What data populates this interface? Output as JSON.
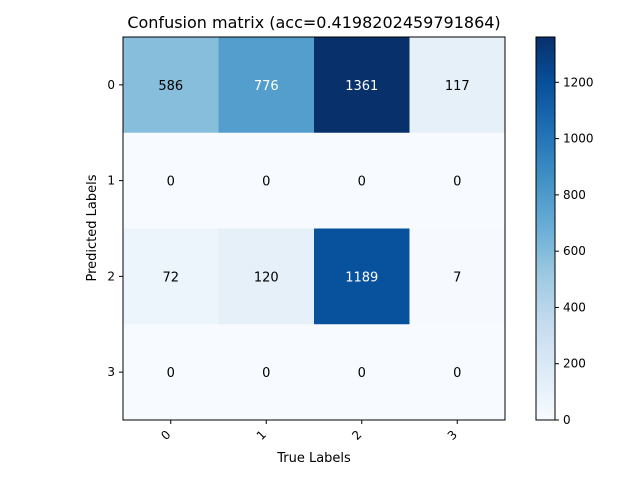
{
  "chart_data": {
    "type": "heatmap",
    "title": "Confusion matrix (acc=0.4198202459791864)",
    "xlabel": "True Labels",
    "ylabel": "Predicted Labels",
    "x_tick_labels": [
      "0",
      "1",
      "2",
      "3"
    ],
    "y_tick_labels": [
      "0",
      "1",
      "2",
      "3"
    ],
    "matrix": [
      [
        586,
        776,
        1361,
        117
      ],
      [
        0,
        0,
        0,
        0
      ],
      [
        72,
        120,
        1189,
        7
      ],
      [
        0,
        0,
        0,
        0
      ]
    ],
    "value_range": [
      0,
      1361
    ],
    "colormap": "Blues",
    "colorbar_ticks": [
      0,
      200,
      400,
      600,
      800,
      1000,
      1200
    ],
    "colorbar_tick_labels": [
      "0",
      "200",
      "400",
      "600",
      "800",
      "1000",
      "1200"
    ]
  }
}
